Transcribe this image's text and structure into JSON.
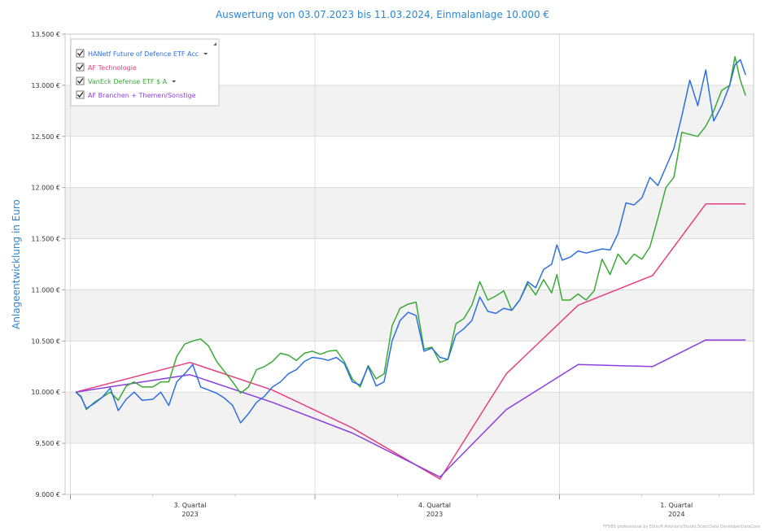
{
  "chart_data": {
    "type": "line",
    "title": "Auswertung von 03.07.2023 bis 11.03.2024, Einmalanlage 10.000 €",
    "ylabel": "Anlageentwicklung  in Euro",
    "xlabel": "",
    "ylim": [
      9000,
      13500
    ],
    "y_ticks": [
      9000,
      9500,
      10000,
      10500,
      11000,
      11500,
      12000,
      12500,
      13000,
      13500
    ],
    "y_tick_labels": [
      "9.000 €",
      "9.500 €",
      "10.000 €",
      "10.500 €",
      "11.000 €",
      "11.500 €",
      "12.000 €",
      "12.500 €",
      "13.000 €",
      "13.500 €"
    ],
    "xlim": [
      "2023-06-29",
      "2024-03-14"
    ],
    "x_ticks": [
      {
        "date": "2023-08-15",
        "label": "3. Quartal",
        "sublabel": "2023"
      },
      {
        "date": "2023-11-15",
        "label": "4. Quartal",
        "sublabel": "2023"
      },
      {
        "date": "2024-02-14",
        "label": "1. Quartal",
        "sublabel": "2024"
      }
    ],
    "quarter_boundaries": [
      "2023-07-01",
      "2023-10-01",
      "2024-01-01"
    ],
    "grid": true,
    "legend_position": "top-left",
    "series": [
      {
        "name": "HANetf Future of Defence ETF Acc",
        "color": "#2f6fe0",
        "points": [
          [
            "2023-07-03",
            10000
          ],
          [
            "2023-07-05",
            9950
          ],
          [
            "2023-07-07",
            9840
          ],
          [
            "2023-07-10",
            9890
          ],
          [
            "2023-07-13",
            9950
          ],
          [
            "2023-07-16",
            10040
          ],
          [
            "2023-07-19",
            9820
          ],
          [
            "2023-07-22",
            9930
          ],
          [
            "2023-07-25",
            10000
          ],
          [
            "2023-07-28",
            9920
          ],
          [
            "2023-08-01",
            9930
          ],
          [
            "2023-08-04",
            10000
          ],
          [
            "2023-08-07",
            9870
          ],
          [
            "2023-08-10",
            10100
          ],
          [
            "2023-08-13",
            10180
          ],
          [
            "2023-08-16",
            10270
          ],
          [
            "2023-08-19",
            10050
          ],
          [
            "2023-08-22",
            10020
          ],
          [
            "2023-08-25",
            9990
          ],
          [
            "2023-08-28",
            9940
          ],
          [
            "2023-08-31",
            9870
          ],
          [
            "2023-09-03",
            9700
          ],
          [
            "2023-09-06",
            9790
          ],
          [
            "2023-09-09",
            9900
          ],
          [
            "2023-09-12",
            9960
          ],
          [
            "2023-09-15",
            10050
          ],
          [
            "2023-09-18",
            10100
          ],
          [
            "2023-09-21",
            10180
          ],
          [
            "2023-09-24",
            10220
          ],
          [
            "2023-09-27",
            10300
          ],
          [
            "2023-09-30",
            10340
          ],
          [
            "2023-10-03",
            10330
          ],
          [
            "2023-10-06",
            10310
          ],
          [
            "2023-10-09",
            10340
          ],
          [
            "2023-10-12",
            10280
          ],
          [
            "2023-10-15",
            10100
          ],
          [
            "2023-10-18",
            10070
          ],
          [
            "2023-10-21",
            10250
          ],
          [
            "2023-10-24",
            10060
          ],
          [
            "2023-10-27",
            10100
          ],
          [
            "2023-10-30",
            10500
          ],
          [
            "2023-11-02",
            10700
          ],
          [
            "2023-11-05",
            10780
          ],
          [
            "2023-11-08",
            10750
          ],
          [
            "2023-11-11",
            10400
          ],
          [
            "2023-11-14",
            10430
          ],
          [
            "2023-11-17",
            10340
          ],
          [
            "2023-11-20",
            10320
          ],
          [
            "2023-11-23",
            10560
          ],
          [
            "2023-11-26",
            10620
          ],
          [
            "2023-11-29",
            10700
          ],
          [
            "2023-12-02",
            10930
          ],
          [
            "2023-12-05",
            10790
          ],
          [
            "2023-12-08",
            10770
          ],
          [
            "2023-12-11",
            10820
          ],
          [
            "2023-12-14",
            10800
          ],
          [
            "2023-12-17",
            10900
          ],
          [
            "2023-12-20",
            11080
          ],
          [
            "2023-12-23",
            11020
          ],
          [
            "2023-12-26",
            11200
          ],
          [
            "2023-12-29",
            11250
          ],
          [
            "2023-12-31",
            11440
          ],
          [
            "2024-01-02",
            11290
          ],
          [
            "2024-01-05",
            11320
          ],
          [
            "2024-01-08",
            11380
          ],
          [
            "2024-01-11",
            11360
          ],
          [
            "2024-01-14",
            11380
          ],
          [
            "2024-01-17",
            11400
          ],
          [
            "2024-01-20",
            11390
          ],
          [
            "2024-01-23",
            11550
          ],
          [
            "2024-01-26",
            11850
          ],
          [
            "2024-01-29",
            11830
          ],
          [
            "2024-02-01",
            11900
          ],
          [
            "2024-02-04",
            12100
          ],
          [
            "2024-02-07",
            12020
          ],
          [
            "2024-02-10",
            12200
          ],
          [
            "2024-02-13",
            12380
          ],
          [
            "2024-02-16",
            12700
          ],
          [
            "2024-02-19",
            13050
          ],
          [
            "2024-02-22",
            12800
          ],
          [
            "2024-02-25",
            13150
          ],
          [
            "2024-02-28",
            12650
          ],
          [
            "2024-03-02",
            12800
          ],
          [
            "2024-03-05",
            13000
          ],
          [
            "2024-03-07",
            13200
          ],
          [
            "2024-03-09",
            13250
          ],
          [
            "2024-03-11",
            13100
          ]
        ]
      },
      {
        "name": "AF Technologie",
        "color": "#e63f7e",
        "points": [
          [
            "2023-07-03",
            10000
          ],
          [
            "2023-08-15",
            10290
          ],
          [
            "2023-09-15",
            10020
          ],
          [
            "2023-10-15",
            9650
          ],
          [
            "2023-11-17",
            9150
          ],
          [
            "2023-12-12",
            10180
          ],
          [
            "2024-01-08",
            10850
          ],
          [
            "2024-02-05",
            11140
          ],
          [
            "2024-02-25",
            11840
          ],
          [
            "2024-03-11",
            11840
          ]
        ]
      },
      {
        "name": "VanEck Defense ETF $ A",
        "color": "#3aaa35",
        "points": [
          [
            "2023-07-03",
            10000
          ],
          [
            "2023-07-05",
            9960
          ],
          [
            "2023-07-07",
            9830
          ],
          [
            "2023-07-10",
            9900
          ],
          [
            "2023-07-13",
            9950
          ],
          [
            "2023-07-16",
            10000
          ],
          [
            "2023-07-19",
            9920
          ],
          [
            "2023-07-22",
            10060
          ],
          [
            "2023-07-25",
            10100
          ],
          [
            "2023-07-28",
            10050
          ],
          [
            "2023-08-01",
            10050
          ],
          [
            "2023-08-04",
            10100
          ],
          [
            "2023-08-07",
            10100
          ],
          [
            "2023-08-10",
            10350
          ],
          [
            "2023-08-13",
            10470
          ],
          [
            "2023-08-16",
            10500
          ],
          [
            "2023-08-19",
            10520
          ],
          [
            "2023-08-22",
            10450
          ],
          [
            "2023-08-25",
            10300
          ],
          [
            "2023-08-28",
            10200
          ],
          [
            "2023-08-31",
            10100
          ],
          [
            "2023-09-03",
            9990
          ],
          [
            "2023-09-06",
            10050
          ],
          [
            "2023-09-09",
            10220
          ],
          [
            "2023-09-12",
            10250
          ],
          [
            "2023-09-15",
            10300
          ],
          [
            "2023-09-18",
            10380
          ],
          [
            "2023-09-21",
            10360
          ],
          [
            "2023-09-24",
            10310
          ],
          [
            "2023-09-27",
            10380
          ],
          [
            "2023-09-30",
            10400
          ],
          [
            "2023-10-03",
            10370
          ],
          [
            "2023-10-06",
            10400
          ],
          [
            "2023-10-09",
            10410
          ],
          [
            "2023-10-12",
            10300
          ],
          [
            "2023-10-15",
            10130
          ],
          [
            "2023-10-18",
            10050
          ],
          [
            "2023-10-21",
            10260
          ],
          [
            "2023-10-24",
            10130
          ],
          [
            "2023-10-27",
            10180
          ],
          [
            "2023-10-30",
            10650
          ],
          [
            "2023-11-02",
            10820
          ],
          [
            "2023-11-05",
            10860
          ],
          [
            "2023-11-08",
            10880
          ],
          [
            "2023-11-11",
            10420
          ],
          [
            "2023-11-14",
            10440
          ],
          [
            "2023-11-17",
            10290
          ],
          [
            "2023-11-20",
            10320
          ],
          [
            "2023-11-23",
            10670
          ],
          [
            "2023-11-26",
            10720
          ],
          [
            "2023-11-29",
            10850
          ],
          [
            "2023-12-02",
            11080
          ],
          [
            "2023-12-05",
            10900
          ],
          [
            "2023-12-08",
            10940
          ],
          [
            "2023-12-11",
            10990
          ],
          [
            "2023-12-14",
            10800
          ],
          [
            "2023-12-17",
            10900
          ],
          [
            "2023-12-20",
            11060
          ],
          [
            "2023-12-23",
            10950
          ],
          [
            "2023-12-26",
            11100
          ],
          [
            "2023-12-29",
            10970
          ],
          [
            "2023-12-31",
            11150
          ],
          [
            "2024-01-02",
            10900
          ],
          [
            "2024-01-05",
            10900
          ],
          [
            "2024-01-08",
            10960
          ],
          [
            "2024-01-11",
            10900
          ],
          [
            "2024-01-14",
            10990
          ],
          [
            "2024-01-17",
            11300
          ],
          [
            "2024-01-20",
            11150
          ],
          [
            "2024-01-23",
            11350
          ],
          [
            "2024-01-26",
            11250
          ],
          [
            "2024-01-29",
            11350
          ],
          [
            "2024-02-01",
            11300
          ],
          [
            "2024-02-04",
            11420
          ],
          [
            "2024-02-07",
            11700
          ],
          [
            "2024-02-10",
            12000
          ],
          [
            "2024-02-13",
            12100
          ],
          [
            "2024-02-16",
            12540
          ],
          [
            "2024-02-19",
            12520
          ],
          [
            "2024-02-22",
            12500
          ],
          [
            "2024-02-25",
            12600
          ],
          [
            "2024-02-28",
            12750
          ],
          [
            "2024-03-02",
            12950
          ],
          [
            "2024-03-05",
            13000
          ],
          [
            "2024-03-07",
            13280
          ],
          [
            "2024-03-09",
            13050
          ],
          [
            "2024-03-11",
            12900
          ]
        ]
      },
      {
        "name": "AF Branchen + Themen/Sonstige",
        "color": "#8a3ee0",
        "points": [
          [
            "2023-07-03",
            10000
          ],
          [
            "2023-08-15",
            10170
          ],
          [
            "2023-09-15",
            9900
          ],
          [
            "2023-10-15",
            9600
          ],
          [
            "2023-11-17",
            9170
          ],
          [
            "2023-12-12",
            9830
          ],
          [
            "2024-01-08",
            10270
          ],
          [
            "2024-02-05",
            10250
          ],
          [
            "2024-02-25",
            10510
          ],
          [
            "2024-03-11",
            10510
          ]
        ]
      }
    ]
  },
  "footer_note": "FFVBS professional by Edisoft Advisors/Studio StaticData DeveloperDataCore"
}
